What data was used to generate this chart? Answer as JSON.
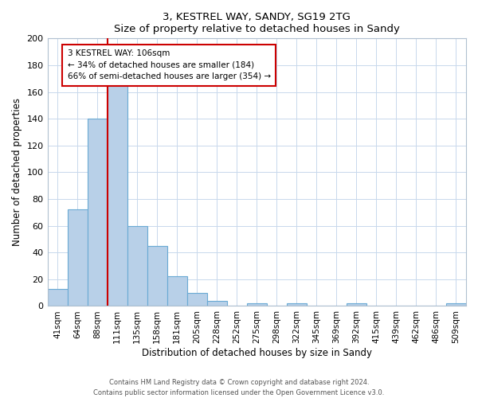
{
  "title": "3, KESTREL WAY, SANDY, SG19 2TG",
  "subtitle": "Size of property relative to detached houses in Sandy",
  "xlabel": "Distribution of detached houses by size in Sandy",
  "ylabel": "Number of detached properties",
  "categories": [
    "41sqm",
    "64sqm",
    "88sqm",
    "111sqm",
    "135sqm",
    "158sqm",
    "181sqm",
    "205sqm",
    "228sqm",
    "252sqm",
    "275sqm",
    "298sqm",
    "322sqm",
    "345sqm",
    "369sqm",
    "392sqm",
    "415sqm",
    "439sqm",
    "462sqm",
    "486sqm",
    "509sqm"
  ],
  "values": [
    13,
    72,
    140,
    165,
    60,
    45,
    22,
    10,
    4,
    0,
    2,
    0,
    2,
    0,
    0,
    2,
    0,
    0,
    0,
    0,
    2
  ],
  "bar_color": "#b8d0e8",
  "bar_edge_color": "#6aaad4",
  "vline_x": 2.5,
  "vline_color": "#cc0000",
  "ylim": [
    0,
    200
  ],
  "yticks": [
    0,
    20,
    40,
    60,
    80,
    100,
    120,
    140,
    160,
    180,
    200
  ],
  "annotation_title": "3 KESTREL WAY: 106sqm",
  "annotation_line1": "← 34% of detached houses are smaller (184)",
  "annotation_line2": "66% of semi-detached houses are larger (354) →",
  "annotation_box_color": "#ffffff",
  "annotation_box_edge": "#cc0000",
  "footer1": "Contains HM Land Registry data © Crown copyright and database right 2024.",
  "footer2": "Contains public sector information licensed under the Open Government Licence v3.0."
}
